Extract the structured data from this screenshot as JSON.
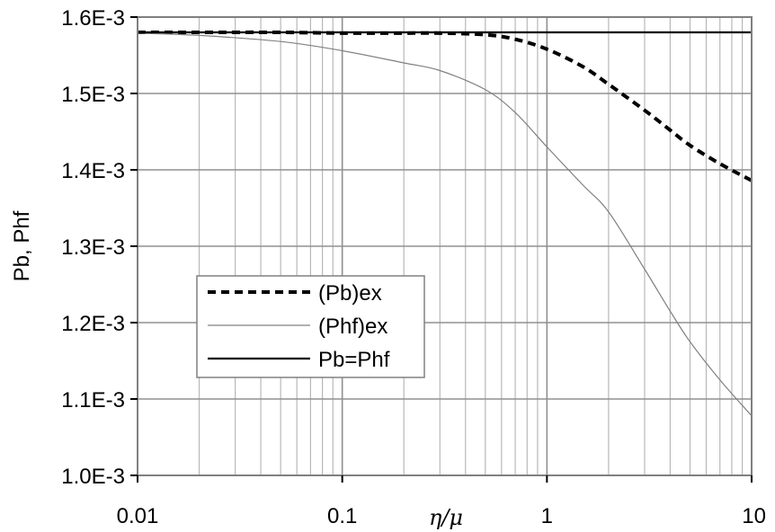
{
  "chart_data": {
    "type": "line",
    "title": "",
    "xlabel": "η/μ",
    "ylabel": "Pb, Phf",
    "x_scale": "log",
    "xlim": [
      0.01,
      10
    ],
    "ylim": [
      0.001,
      0.0016
    ],
    "grid": true,
    "legend_position": "center-left",
    "x_ticks": [
      {
        "value": 0.01,
        "label": "0.01"
      },
      {
        "value": 0.1,
        "label": "0.1"
      },
      {
        "value": 1,
        "label": "1"
      },
      {
        "value": 10,
        "label": "10"
      }
    ],
    "y_ticks": [
      {
        "value": 0.001,
        "label": "1.0E-3"
      },
      {
        "value": 0.0011,
        "label": "1.1E-3"
      },
      {
        "value": 0.0012,
        "label": "1.2E-3"
      },
      {
        "value": 0.0013,
        "label": "1.3E-3"
      },
      {
        "value": 0.0014,
        "label": "1.4E-3"
      },
      {
        "value": 0.0015,
        "label": "1.5E-3"
      },
      {
        "value": 0.0016,
        "label": "1.6E-3"
      }
    ],
    "series": [
      {
        "name": "(Pb)ex",
        "style": "dashed-thick",
        "color": "#000000",
        "x": [
          0.01,
          0.02,
          0.05,
          0.1,
          0.2,
          0.3,
          0.5,
          0.7,
          1,
          1.5,
          2,
          3,
          4,
          5,
          7,
          10
        ],
        "y": [
          0.00158,
          0.00158,
          0.00158,
          0.001579,
          0.001579,
          0.001579,
          0.001577,
          0.001571,
          0.001558,
          0.001535,
          0.001512,
          0.001478,
          0.001452,
          0.001432,
          0.001408,
          0.001386
        ]
      },
      {
        "name": "(Phf)ex",
        "style": "thin",
        "color": "#808080",
        "x": [
          0.01,
          0.02,
          0.05,
          0.1,
          0.2,
          0.3,
          0.5,
          0.7,
          1,
          1.5,
          2,
          3,
          4,
          5,
          7,
          10
        ],
        "y": [
          0.001579,
          0.001576,
          0.001568,
          0.001556,
          0.00154,
          0.00153,
          0.001505,
          0.001475,
          0.00143,
          0.00138,
          0.001345,
          0.00127,
          0.001215,
          0.001175,
          0.001125,
          0.001078
        ]
      },
      {
        "name": "Pb=Phf",
        "style": "solid",
        "color": "#000000",
        "x": [
          0.01,
          10
        ],
        "y": [
          0.00158,
          0.00158
        ]
      }
    ]
  }
}
